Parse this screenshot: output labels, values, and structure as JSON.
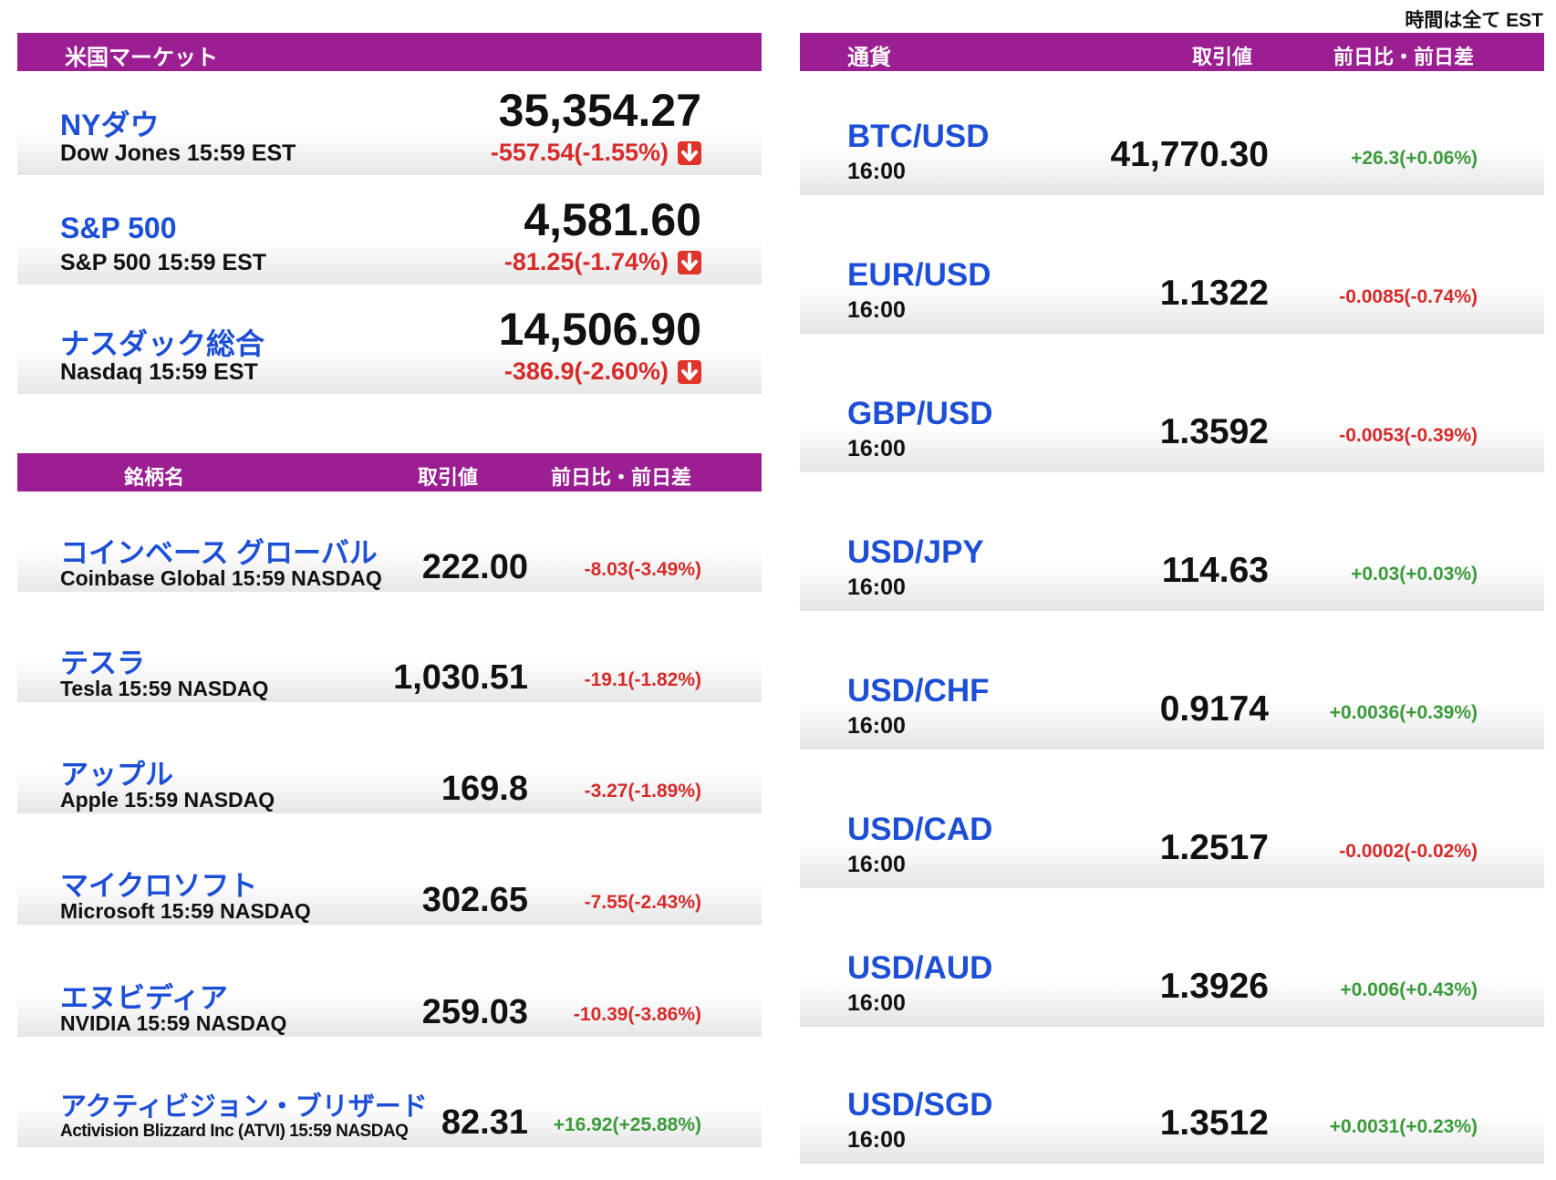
{
  "note": "時間は全て EST",
  "market": {
    "title": "米国マーケット",
    "rows": [
      {
        "name": "NYダウ",
        "sub": "Dow Jones 15:59 EST",
        "price": "35,354.27",
        "change": "-557.54(-1.55%)",
        "dir": "down"
      },
      {
        "name": "S&P 500",
        "sub": "S&P 500 15:59 EST",
        "price": "4,581.60",
        "change": "-81.25(-1.74%)",
        "dir": "down"
      },
      {
        "name": "ナスダック総合",
        "sub": "Nasdaq 15:59 EST",
        "price": "14,506.90",
        "change": "-386.9(-2.60%)",
        "dir": "down"
      }
    ]
  },
  "stocks": {
    "headers": {
      "name": "銘柄名",
      "price": "取引値",
      "change": "前日比・前日差"
    },
    "rows": [
      {
        "name": "コインベース グローバル",
        "sub": "Coinbase Global 15:59  NASDAQ",
        "price": "222.00",
        "change": "-8.03(-3.49%)",
        "dir": "down"
      },
      {
        "name": "テスラ",
        "sub": "Tesla 15:59  NASDAQ",
        "price": "1,030.51",
        "change": "-19.1(-1.82%)",
        "dir": "down"
      },
      {
        "name": "アップル",
        "sub": "Apple 15:59  NASDAQ",
        "price": "169.8",
        "change": "-3.27(-1.89%)",
        "dir": "down"
      },
      {
        "name": "マイクロソフト",
        "sub": "Microsoft 15:59  NASDAQ",
        "price": "302.65",
        "change": "-7.55(-2.43%)",
        "dir": "down"
      },
      {
        "name": "エヌビディア",
        "sub": "NVIDIA 15:59  NASDAQ",
        "price": "259.03",
        "change": "-10.39(-3.86%)",
        "dir": "down"
      },
      {
        "name": "アクティビジョン・ブリザード",
        "sub": "Activision Blizzard Inc (ATVI) 15:59  NASDAQ",
        "price": "82.31",
        "change": "+16.92(+25.88%)",
        "dir": "up"
      }
    ]
  },
  "currency": {
    "headers": {
      "name": "通貨",
      "price": "取引値",
      "change": "前日比・前日差"
    },
    "rows": [
      {
        "pair": "BTC/USD",
        "time": "16:00",
        "price": "41,770.30",
        "change": "+26.3(+0.06%)",
        "dir": "up"
      },
      {
        "pair": "EUR/USD",
        "time": "16:00",
        "price": "1.1322",
        "change": "-0.0085(-0.74%)",
        "dir": "down"
      },
      {
        "pair": "GBP/USD",
        "time": "16:00",
        "price": "1.3592",
        "change": "-0.0053(-0.39%)",
        "dir": "down"
      },
      {
        "pair": "USD/JPY",
        "time": "16:00",
        "price": "114.63",
        "change": "+0.03(+0.03%)",
        "dir": "up"
      },
      {
        "pair": "USD/CHF",
        "time": "16:00",
        "price": "0.9174",
        "change": "+0.0036(+0.39%)",
        "dir": "up"
      },
      {
        "pair": "USD/CAD",
        "time": "16:00",
        "price": "1.2517",
        "change": "-0.0002(-0.02%)",
        "dir": "down"
      },
      {
        "pair": "USD/AUD",
        "time": "16:00",
        "price": "1.3926",
        "change": "+0.006(+0.43%)",
        "dir": "up"
      },
      {
        "pair": "USD/SGD",
        "time": "16:00",
        "price": "1.3512",
        "change": "+0.0031(+0.23%)",
        "dir": "up"
      }
    ]
  }
}
